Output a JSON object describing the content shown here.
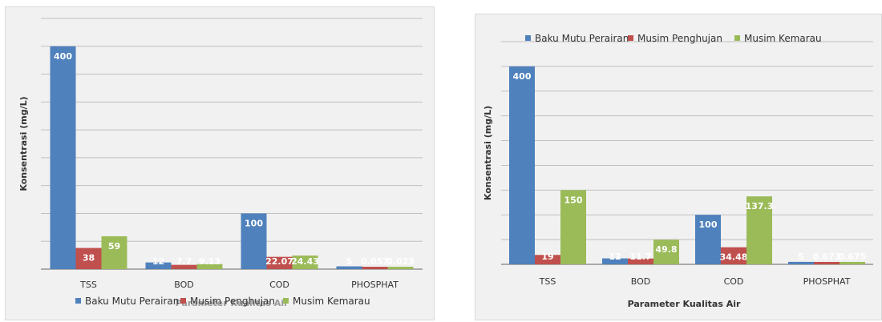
{
  "chart_data": [
    {
      "type": "bar",
      "categories": [
        "TSS",
        "BOD",
        "COD",
        "PHOSPHAT"
      ],
      "series": [
        {
          "name": "Baku Mutu Perairan",
          "values": [
            400,
            12,
            100,
            5
          ],
          "labels": [
            "400",
            "12",
            "100",
            "5"
          ],
          "color": "#4f81bd"
        },
        {
          "name": "Musim Penghujan",
          "values": [
            38,
            7.7,
            22.07,
            0.057
          ],
          "labels": [
            "38",
            "7.7",
            "22.07",
            "0.057"
          ],
          "color": "#c0504d"
        },
        {
          "name": "Musim Kemarau",
          "values": [
            59,
            9.13,
            24.43,
            0.023
          ],
          "labels": [
            "59",
            "9.13",
            "24.43",
            "0.023"
          ],
          "color": "#9bbb59"
        }
      ],
      "ylabel": "Konsentrasi (mg/L)",
      "xlabel_overlapped": "Parameter Kualitas Air",
      "ylim": [
        0,
        450
      ],
      "grid": true,
      "legend": "bottom"
    },
    {
      "type": "bar",
      "categories": [
        "TSS",
        "BOD",
        "COD",
        "PHOSPHAT"
      ],
      "series": [
        {
          "name": "Baku Mutu Perairan",
          "values": [
            400,
            12,
            100,
            5
          ],
          "labels": [
            "400",
            "12",
            "100",
            "5"
          ],
          "color": "#4f81bd"
        },
        {
          "name": "Musim Penghujan",
          "values": [
            19,
            11.7,
            34.48,
            0.673
          ],
          "labels": [
            "19",
            "11.7",
            "34.48",
            "0.673"
          ],
          "color": "#c0504d"
        },
        {
          "name": "Musim Kemarau",
          "values": [
            150,
            49.8,
            137.3,
            0.675
          ],
          "labels": [
            "150",
            "49.8",
            "137.3",
            "0.675"
          ],
          "color": "#9bbb59"
        }
      ],
      "ylabel": "Konsentrasi (mg/L)",
      "xlabel": "Parameter Kualitas Air",
      "ylim": [
        0,
        450
      ],
      "grid": true,
      "legend": "top"
    }
  ]
}
